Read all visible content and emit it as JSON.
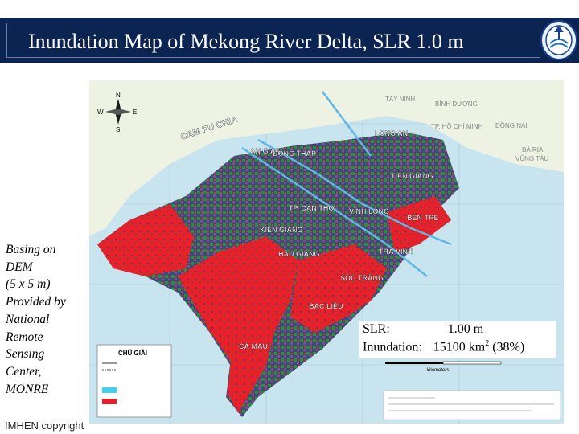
{
  "slide": {
    "title": "Inundation Map of Mekong River Delta, SLR 1.0 m",
    "side_note": [
      "Basing on",
      "DEM",
      "(5 x 5 m)",
      "Provided by",
      "National",
      "Remote",
      "Sensing",
      "Center,",
      "MONRE"
    ],
    "footer": "IMHEN copyright",
    "info": {
      "slr_label": "SLR:",
      "slr_value": "1.00 m",
      "inundation_label": "Inundation:",
      "inundation_value_prefix": "15100 km",
      "inundation_unit_sup": "2",
      "inundation_percent": " (38%)"
    }
  },
  "map": {
    "labels": {
      "cambodia": "CAM PU CHIA",
      "an_giang": "AN GIANG",
      "dong_thap": "ĐỒNG THÁP",
      "long_an": "LONG AN",
      "tien_giang": "TIỀN GIANG",
      "can_tho": "TP. CẦN THƠ",
      "vinh_long": "VĨNH LONG",
      "ben_tre": "BẾN TRE",
      "kien_giang": "KIÊN GIANG",
      "hau_giang": "HẬU GIANG",
      "tra_vinh": "TRÀ VINH",
      "soc_trang": "SÓC TRĂNG",
      "bac_lieu": "BẠC LIÊU",
      "ca_mau": "CÀ MAU",
      "tay_ninh": "TÂY NINH",
      "binh_duong": "BÌNH DƯƠNG",
      "dong_nai": "ĐỒNG NAI",
      "ho_chi_minh": "TP. HỒ CHÍ MINH",
      "ba_ria": "BÀ RỊA",
      "vung_tau": "VŨNG TÀU"
    },
    "legend": {
      "title": "CHÚ GIẢI"
    },
    "scale": {
      "unit": "kilometers",
      "start": "0",
      "mid": "50",
      "end": "100"
    },
    "compass": {
      "n": "N",
      "s": "S",
      "e": "E",
      "w": "W"
    },
    "colors": {
      "sea": "#c8e4ee",
      "inundated": "#e8202a",
      "land_green": "#2f8a3a",
      "land_dark": "#3a3f6e",
      "land_purple": "#7a4f8a",
      "title_bg": "#0b2452"
    }
  }
}
